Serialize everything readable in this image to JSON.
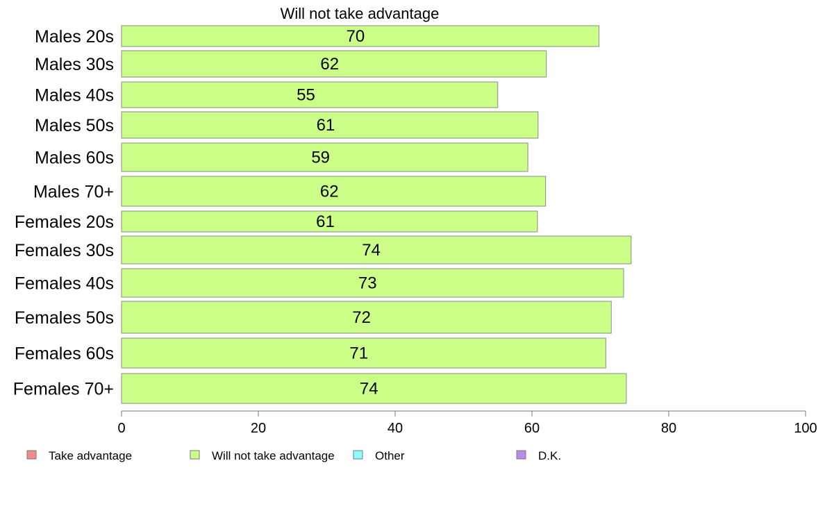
{
  "chart_data": {
    "type": "bar",
    "orientation": "horizontal",
    "title": "Will not take advantage",
    "categories": [
      "Males 20s",
      "Males 30s",
      "Males 40s",
      "Males 50s",
      "Males 60s",
      "Males 70+",
      "Females 20s",
      "Females 30s",
      "Females 40s",
      "Females 50s",
      "Females 60s",
      "Females 70+"
    ],
    "series": [
      {
        "name": "Will not take advantage",
        "color": "#ccff88",
        "values": [
          69.8,
          62.1,
          55.0,
          60.9,
          59.4,
          62.0,
          60.8,
          74.5,
          73.4,
          71.6,
          70.8,
          73.8
        ],
        "data_labels": [
          "70",
          "62",
          "55",
          "61",
          "59",
          "62",
          "61",
          "74",
          "73",
          "72",
          "71",
          "74"
        ]
      }
    ],
    "xlim": [
      0,
      100
    ],
    "xticks": [
      "0",
      "20",
      "40",
      "60",
      "80",
      "100"
    ],
    "grid": false,
    "legend": {
      "placement": "bottom",
      "entries": [
        {
          "label": "Take advantage",
          "color": "#f28b8b"
        },
        {
          "label": "Will not take advantage",
          "color": "#ccff88"
        },
        {
          "label": "Other",
          "color": "#88ffff"
        },
        {
          "label": "D.K.",
          "color": "#bb88ee"
        }
      ]
    }
  }
}
